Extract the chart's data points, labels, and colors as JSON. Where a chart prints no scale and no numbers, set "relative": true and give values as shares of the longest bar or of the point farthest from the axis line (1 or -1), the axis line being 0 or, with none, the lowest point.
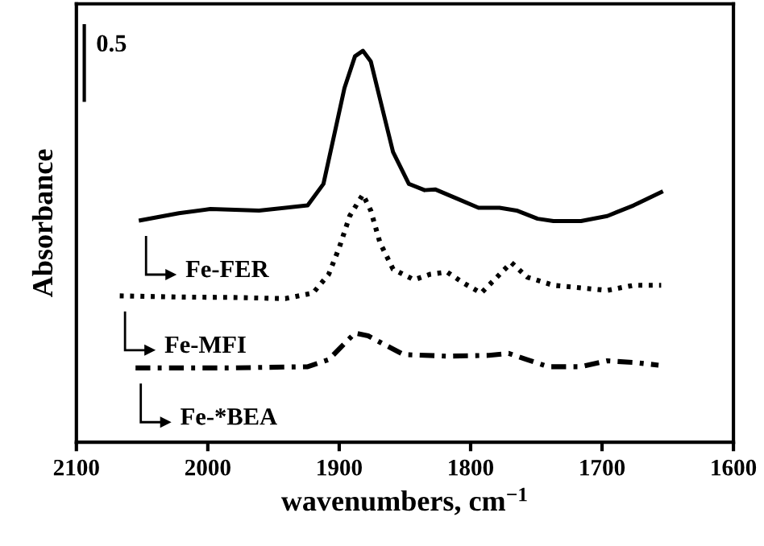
{
  "chart_data": {
    "type": "line",
    "relative": true,
    "xlabel": "wavenumbers, cm$^{−1}$",
    "ylabel": "Absorbance",
    "xlim": [
      2100,
      1600
    ],
    "xticks": [
      2100,
      2000,
      1900,
      1800,
      1700,
      1600
    ],
    "annotations": [
      "0.5"
    ],
    "marker": "none",
    "legend": "left",
    "grid": false,
    "series": [
      {
        "name": "Fe-FER",
        "color": "#000000",
        "line_style": "solid",
        "x": [
          2051,
          2022,
          1998,
          1961,
          1924,
          1912,
          1904,
          1896,
          1888,
          1882,
          1876,
          1867,
          1859,
          1847,
          1835,
          1827,
          1810,
          1794,
          1778,
          1765,
          1749,
          1737,
          1716,
          1696,
          1676,
          1655
        ],
        "values": [
          0.567,
          0.585,
          0.596,
          0.592,
          0.605,
          0.66,
          0.782,
          0.905,
          0.986,
          1.0,
          0.973,
          0.85,
          0.741,
          0.66,
          0.644,
          0.646,
          0.622,
          0.599,
          0.599,
          0.592,
          0.571,
          0.565,
          0.565,
          0.578,
          0.605,
          0.639
        ]
      },
      {
        "name": "Fe-MFI",
        "color": "#000000",
        "line_style": "dotted",
        "x": [
          2067,
          2022,
          1982,
          1941,
          1920,
          1908,
          1900,
          1892,
          1882,
          1876,
          1869,
          1859,
          1843,
          1831,
          1818,
          1806,
          1792,
          1782,
          1769,
          1757,
          1737,
          1696,
          1676,
          1655
        ],
        "values": [
          0.374,
          0.371,
          0.37,
          0.367,
          0.381,
          0.429,
          0.497,
          0.578,
          0.633,
          0.592,
          0.51,
          0.442,
          0.415,
          0.429,
          0.435,
          0.408,
          0.381,
          0.415,
          0.459,
          0.422,
          0.401,
          0.388,
          0.401,
          0.401
        ]
      },
      {
        "name": "Fe-*BEA",
        "color": "#000000",
        "line_style": "dashed",
        "x": [
          2055,
          1982,
          1924,
          1908,
          1896,
          1888,
          1878,
          1867,
          1851,
          1818,
          1786,
          1771,
          1757,
          1741,
          1716,
          1696,
          1676,
          1657
        ],
        "values": [
          0.19,
          0.19,
          0.193,
          0.211,
          0.252,
          0.279,
          0.272,
          0.252,
          0.224,
          0.22,
          0.222,
          0.227,
          0.211,
          0.193,
          0.193,
          0.208,
          0.204,
          0.197
        ]
      }
    ]
  }
}
